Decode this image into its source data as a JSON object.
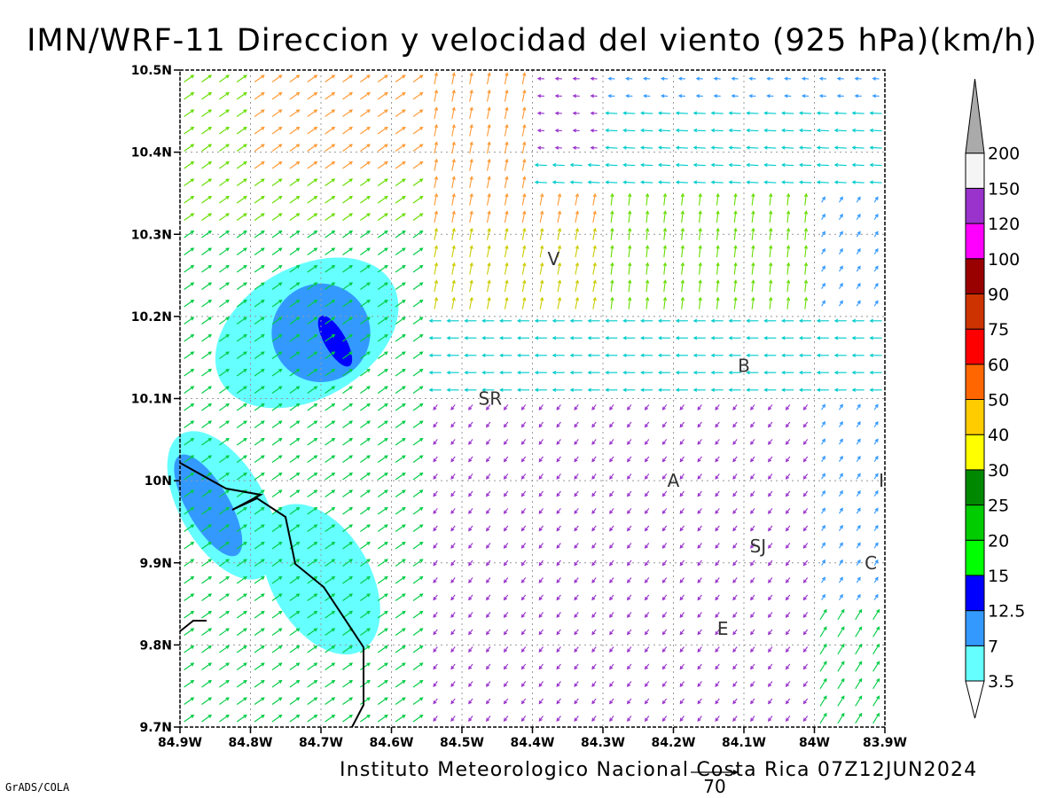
{
  "title": "IMN/WRF-11 Direccion y velocidad del viento (925 hPa)(km/h)",
  "footer": "Instituto Meteorologico Nacional Costa Rica 07Z12JUN2024",
  "software": "GrADS/COLA",
  "reference_vector": {
    "value": "70"
  },
  "axes": {
    "lat_labels": [
      "9.7N",
      "9.8N",
      "9.9N",
      "10N",
      "10.1N",
      "10.2N",
      "10.3N",
      "10.4N",
      "10.5N"
    ],
    "lon_labels": [
      "84.9W",
      "84.8W",
      "84.7W",
      "84.6W",
      "84.5W",
      "84.4W",
      "84.3W",
      "84.2W",
      "84.1W",
      "84W",
      "83.9W"
    ],
    "lat_range": [
      9.7,
      10.5
    ],
    "lon_range": [
      -84.9,
      -83.9
    ]
  },
  "places": [
    {
      "label": "SR",
      "lon": -84.46,
      "lat": 10.1
    },
    {
      "label": "V",
      "lon": -84.37,
      "lat": 10.27
    },
    {
      "label": "B",
      "lon": -84.1,
      "lat": 10.14
    },
    {
      "label": "A",
      "lon": -84.2,
      "lat": 10.0
    },
    {
      "label": "SJ",
      "lon": -84.08,
      "lat": 9.92
    },
    {
      "label": "C",
      "lon": -83.92,
      "lat": 9.9
    },
    {
      "label": "E",
      "lon": -84.13,
      "lat": 9.82
    },
    {
      "label": "I",
      "lon": -83.905,
      "lat": 10.0
    }
  ],
  "colorbar": {
    "labels": [
      "3.5",
      "7",
      "12.5",
      "15",
      "20",
      "25",
      "30",
      "40",
      "50",
      "60",
      "75",
      "90",
      "100",
      "120",
      "150",
      "200"
    ],
    "colors": [
      "#66ffff",
      "#3399ff",
      "#0000ff",
      "#00ff00",
      "#00cc00",
      "#008800",
      "#ffff00",
      "#ffcc00",
      "#ff6600",
      "#ff0000",
      "#cc3300",
      "#990000",
      "#ff00ff",
      "#9933cc",
      "#f5f5f5",
      "#aaaaaa"
    ]
  },
  "wind_field": {
    "speed_regions": [
      {
        "level": "3.5",
        "color": "#66ffff",
        "lon": -84.72,
        "lat": 10.18,
        "dlon": 0.14,
        "dlat": 0.08
      },
      {
        "level": "3.5",
        "color": "#66ffff",
        "lon": -84.84,
        "lat": 9.97,
        "dlon": 0.06,
        "dlat": 0.1
      },
      {
        "level": "3.5",
        "color": "#66ffff",
        "lon": -84.7,
        "lat": 9.88,
        "dlon": 0.07,
        "dlat": 0.1
      },
      {
        "level": "7",
        "color": "#3399ff",
        "lon": -84.7,
        "lat": 10.18,
        "dlon": 0.07,
        "dlat": 0.06
      },
      {
        "level": "7",
        "color": "#3399ff",
        "lon": -84.86,
        "lat": 9.97,
        "dlon": 0.03,
        "dlat": 0.07
      },
      {
        "level": "12.5",
        "color": "#0000ff",
        "lon": -84.68,
        "lat": 10.17,
        "dlon": 0.015,
        "dlat": 0.035
      }
    ]
  }
}
